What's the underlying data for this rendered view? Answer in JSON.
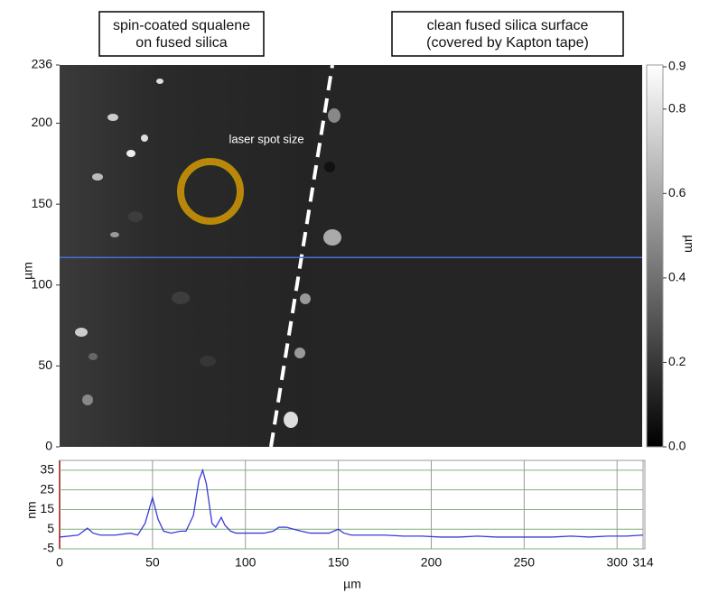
{
  "chart_data": [
    {
      "type": "image",
      "annotations": [
        {
          "lines": [
            "spin-coated squalene",
            "on fused silica"
          ]
        },
        {
          "lines": [
            "clean fused silica surface",
            "(covered by Kapton tape)"
          ]
        },
        {
          "text": "laser spot size"
        }
      ],
      "ylabel": "µm",
      "ylim": [
        0,
        236
      ],
      "yticks": [
        0,
        50,
        100,
        150,
        200,
        236
      ],
      "profile_y": 117,
      "colorbar": {
        "label": "µm",
        "lim": [
          0,
          0.9
        ],
        "ticks": [
          {
            "value": 0,
            "label": "0.0"
          },
          0.2,
          0.4,
          0.6,
          0.8,
          0.9
        ]
      }
    },
    {
      "type": "line",
      "xlabel": "µm",
      "ylabel": "nm",
      "x": [
        0,
        5,
        10,
        15,
        18,
        22,
        30,
        38,
        42,
        46,
        50,
        53,
        56,
        60,
        65,
        68,
        72,
        75,
        77,
        79,
        82,
        84,
        87,
        89,
        92,
        95,
        100,
        105,
        110,
        115,
        118,
        122,
        126,
        130,
        135,
        140,
        145,
        150,
        153,
        157,
        165,
        175,
        185,
        195,
        205,
        215,
        225,
        235,
        245,
        255,
        265,
        275,
        285,
        295,
        305,
        314
      ],
      "series": [
        {
          "color": "#3b3bd6",
          "values": [
            1,
            1.5,
            2,
            5.5,
            3,
            2,
            2,
            3,
            2,
            8,
            21,
            10,
            4,
            3,
            4,
            4,
            12,
            30,
            35,
            28,
            8,
            6,
            11,
            7,
            4,
            3,
            3,
            3,
            3,
            4,
            6,
            6,
            5,
            4,
            3,
            3,
            3,
            5,
            3,
            2,
            2,
            2,
            1.5,
            1.5,
            1,
            1,
            1.5,
            1,
            1,
            1,
            1,
            1.5,
            1,
            1.5,
            1.5,
            2
          ]
        }
      ],
      "xlim": [
        0,
        314
      ],
      "ylim": [
        -5,
        40
      ],
      "xticks": [
        0,
        50,
        100,
        150,
        200,
        250,
        300,
        314
      ],
      "yticks": [
        -5,
        5,
        15,
        25,
        35
      ],
      "grid": true
    }
  ]
}
